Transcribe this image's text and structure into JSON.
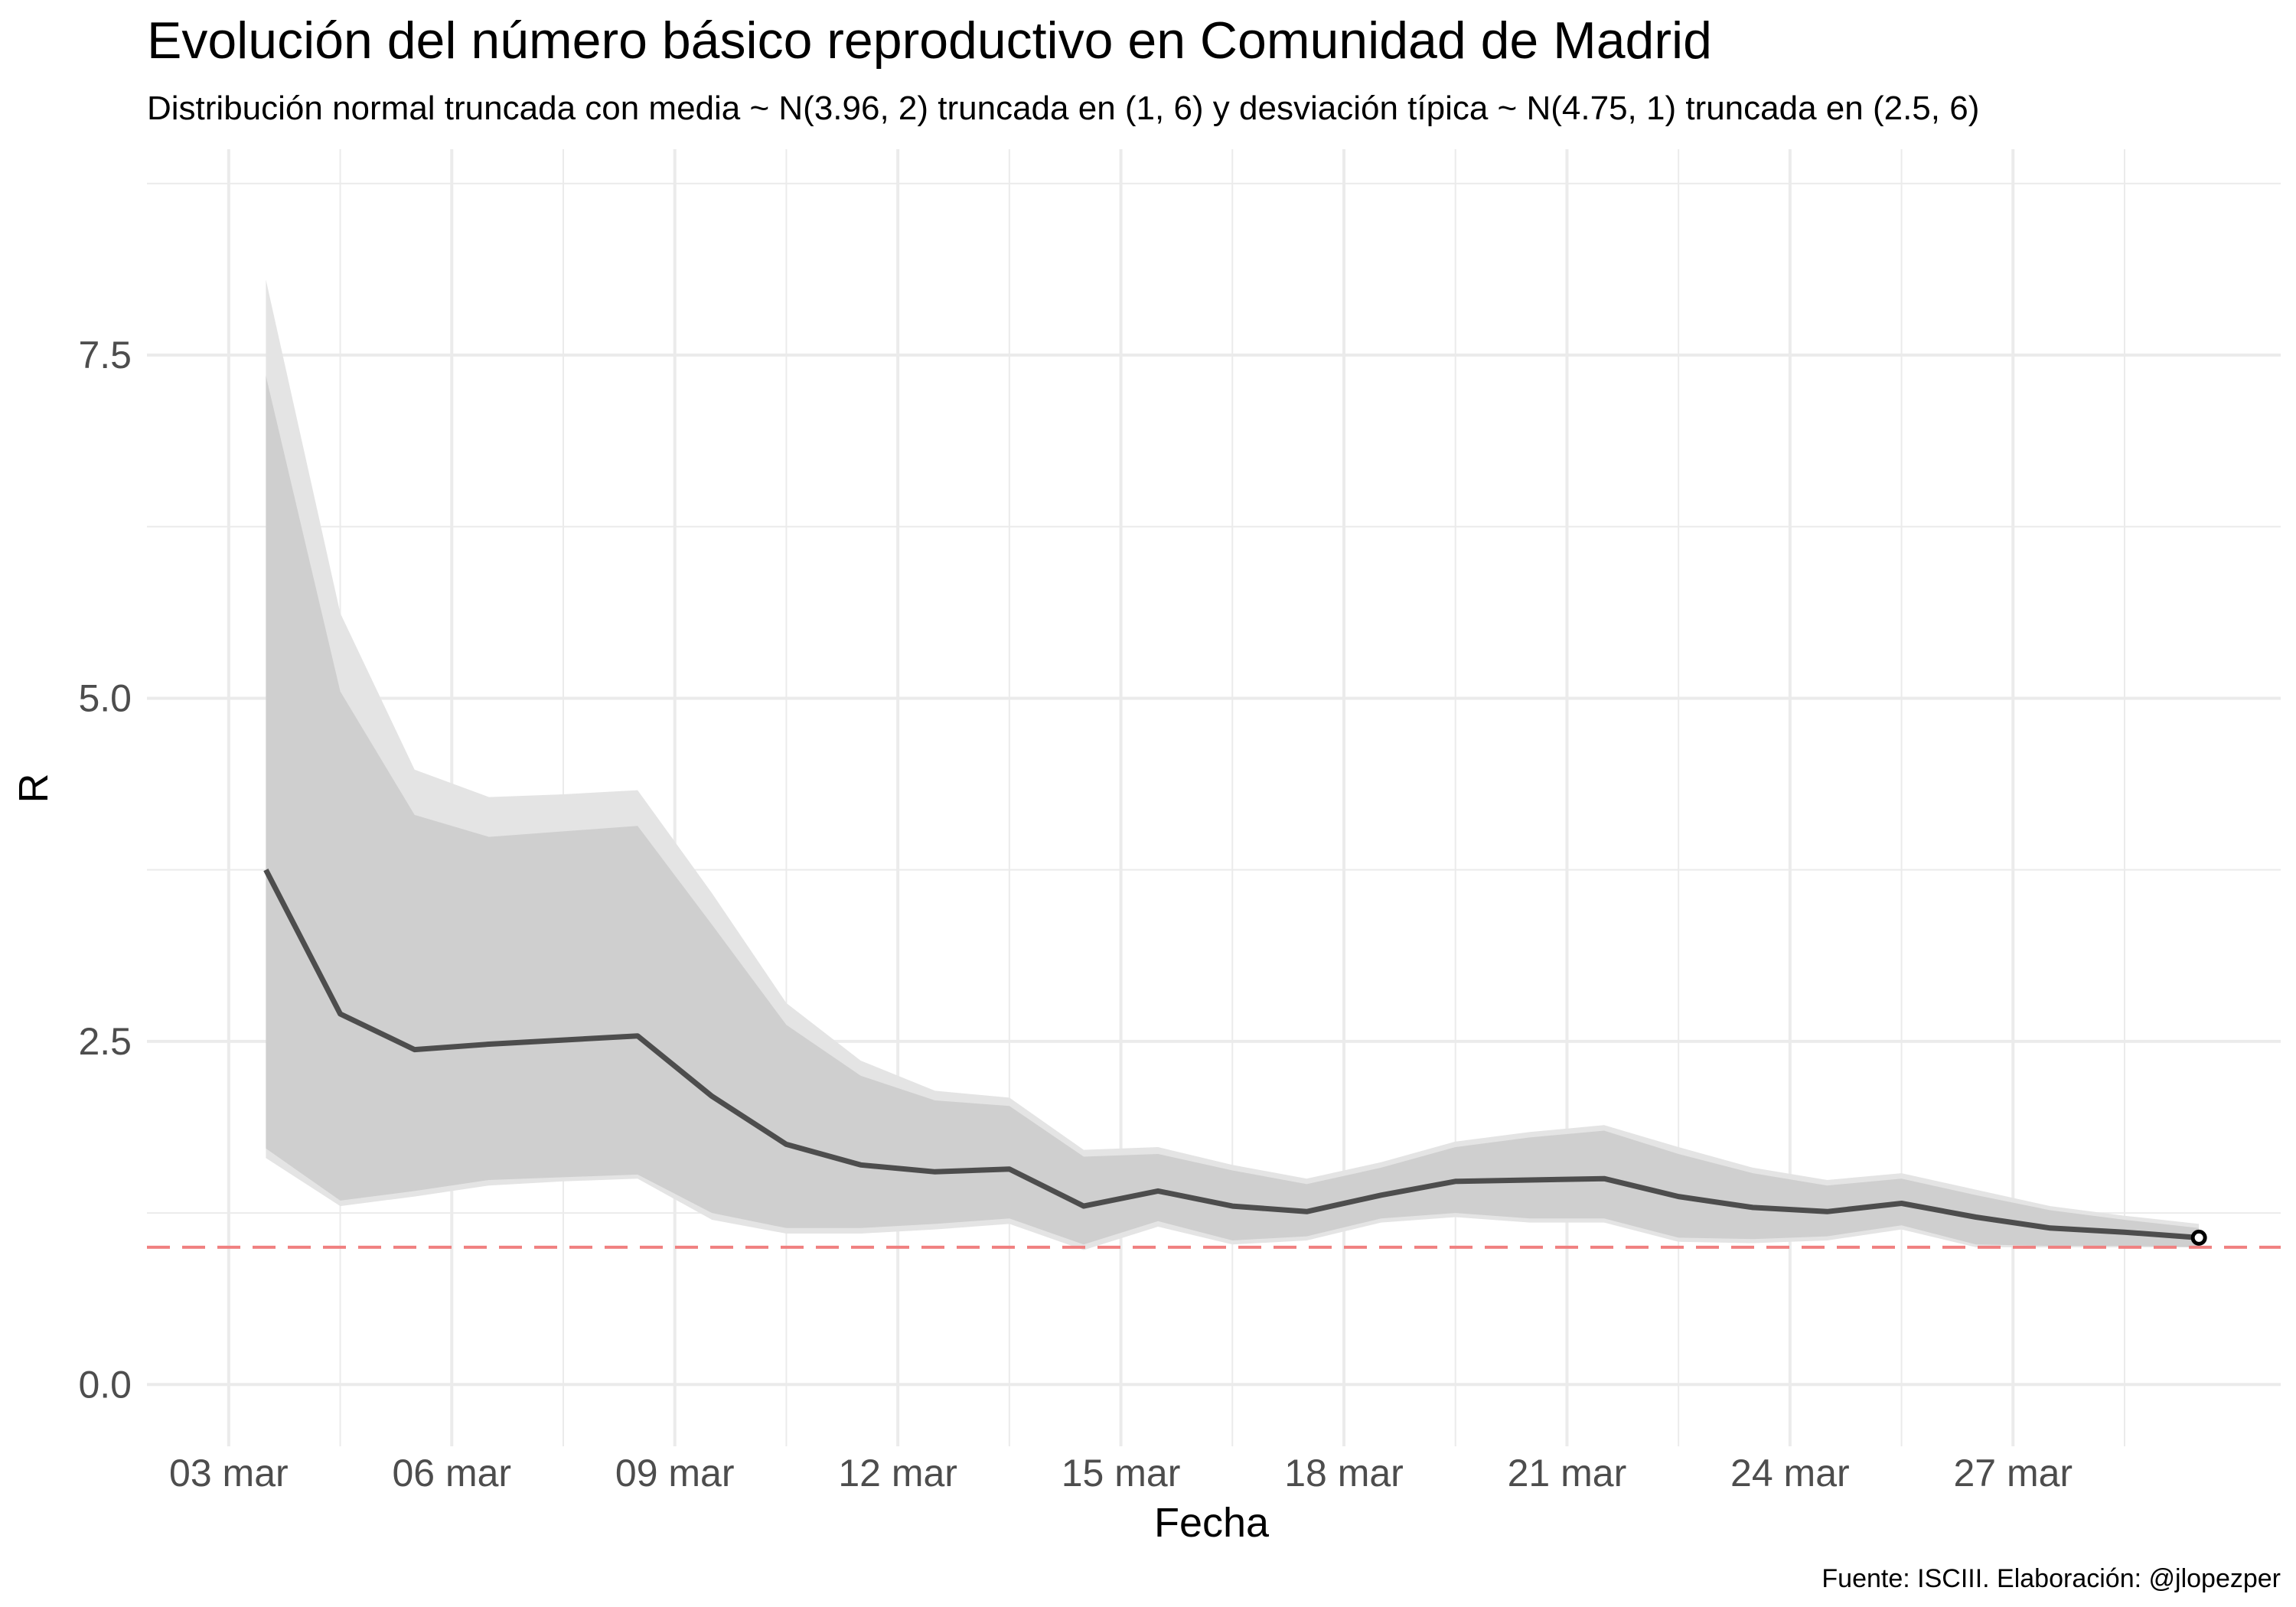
{
  "chart_data": {
    "type": "line",
    "title": "Evolución del número básico reproductivo en Comunidad de Madrid",
    "subtitle": "Distribución normal truncada con media ~ N(3.96, 2) truncada en (1, 6) y desviación típica ~ N(4.75, 1) truncada en (2.5, 6)",
    "xlabel": "Fecha",
    "ylabel": "R",
    "caption": "Fuente: ISCIII. Elaboración: @jlopezper",
    "x_ticks": [
      {
        "day": 3,
        "label": "03 mar"
      },
      {
        "day": 6,
        "label": "06 mar"
      },
      {
        "day": 9,
        "label": "09 mar"
      },
      {
        "day": 12,
        "label": "12 mar"
      },
      {
        "day": 15,
        "label": "15 mar"
      },
      {
        "day": 18,
        "label": "18 mar"
      },
      {
        "day": 21,
        "label": "21 mar"
      },
      {
        "day": 24,
        "label": "24 mar"
      },
      {
        "day": 27,
        "label": "27 mar"
      }
    ],
    "y_ticks": [
      {
        "value": 0,
        "label": "0.0"
      },
      {
        "value": 2.5,
        "label": "2.5"
      },
      {
        "value": 5,
        "label": "5.0"
      },
      {
        "value": 7.5,
        "label": "7.5"
      }
    ],
    "xlim": [
      1.9,
      30.6
    ],
    "ylim": [
      -0.45,
      9.0
    ],
    "x_minor_grid": [
      4.5,
      7.5,
      10.5,
      13.5,
      16.5,
      19.5,
      22.5,
      25.5,
      28.5
    ],
    "y_minor_grid": [
      1.25,
      3.75,
      6.25,
      8.75
    ],
    "reference_line": {
      "y": 1.0,
      "color": "#f08080",
      "style": "dashed"
    },
    "series": [
      {
        "x": [
          3.5,
          4.5,
          5.5,
          6.5,
          7.5,
          8.5,
          9.5,
          10.5,
          11.5,
          12.5,
          13.5,
          14.5,
          15.5,
          16.5,
          17.5,
          18.5,
          19.5,
          20.5,
          21.5,
          22.5,
          23.5,
          24.5,
          25.5,
          26.5,
          27.5,
          28.5,
          29.5
        ],
        "mean": [
          3.75,
          2.7,
          2.44,
          2.48,
          2.51,
          2.54,
          2.1,
          1.75,
          1.6,
          1.55,
          1.57,
          1.3,
          1.41,
          1.3,
          1.26,
          1.38,
          1.48,
          1.49,
          1.5,
          1.37,
          1.29,
          1.26,
          1.32,
          1.22,
          1.14,
          1.11,
          1.07
        ],
        "outer_lower": [
          1.65,
          1.3,
          1.37,
          1.45,
          1.48,
          1.5,
          1.2,
          1.1,
          1.1,
          1.13,
          1.17,
          0.98,
          1.15,
          1.02,
          1.05,
          1.18,
          1.22,
          1.18,
          1.18,
          1.04,
          1.03,
          1.05,
          1.13,
          1.0,
          1.0,
          1.0,
          1.0
        ],
        "inner_lower": [
          1.72,
          1.34,
          1.41,
          1.49,
          1.51,
          1.53,
          1.25,
          1.14,
          1.14,
          1.17,
          1.21,
          1.02,
          1.19,
          1.05,
          1.08,
          1.21,
          1.25,
          1.21,
          1.21,
          1.07,
          1.06,
          1.08,
          1.16,
          1.02,
          1.01,
          1.01,
          1.0
        ],
        "inner_upper": [
          7.35,
          5.05,
          4.15,
          3.99,
          4.03,
          4.07,
          3.35,
          2.62,
          2.25,
          2.07,
          2.03,
          1.66,
          1.68,
          1.56,
          1.46,
          1.58,
          1.73,
          1.8,
          1.85,
          1.68,
          1.54,
          1.45,
          1.5,
          1.38,
          1.27,
          1.2,
          1.14
        ],
        "outer_upper": [
          8.05,
          5.62,
          4.48,
          4.28,
          4.3,
          4.33,
          3.58,
          2.78,
          2.36,
          2.14,
          2.09,
          1.71,
          1.73,
          1.6,
          1.5,
          1.62,
          1.77,
          1.84,
          1.89,
          1.73,
          1.58,
          1.49,
          1.54,
          1.42,
          1.3,
          1.23,
          1.17
        ]
      }
    ],
    "colors": {
      "outer_band": "#e4e4e4",
      "inner_band": "#cfcfcf",
      "line": "#4d4d4d",
      "grid": "#ebebeb"
    },
    "grid": true,
    "legend": "none"
  }
}
